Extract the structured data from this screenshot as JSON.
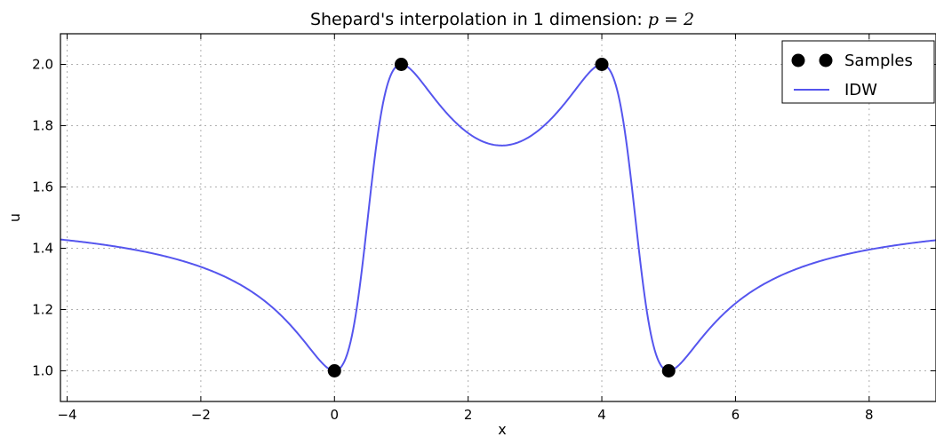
{
  "chart_data": {
    "type": "line",
    "title": "Shepard's interpolation in 1 dimension: ",
    "title_math": "p = 2",
    "xlabel": "x",
    "ylabel": "u",
    "xlim": [
      -4.1,
      9.0
    ],
    "ylim": [
      0.9,
      2.1
    ],
    "xticks": [
      -4,
      -2,
      0,
      2,
      4,
      6,
      8
    ],
    "xtick_labels": [
      "−4",
      "−2",
      "0",
      "2",
      "4",
      "6",
      "8"
    ],
    "yticks": [
      1.0,
      1.2,
      1.4,
      1.6,
      1.8,
      2.0
    ],
    "ytick_labels": [
      "1.0",
      "1.2",
      "1.4",
      "1.6",
      "1.8",
      "2.0"
    ],
    "grid": true,
    "legend_position": "top-right",
    "power": 2,
    "series": [
      {
        "name": "Samples",
        "kind": "scatter",
        "color": "#000000",
        "x": [
          0,
          1,
          4,
          5
        ],
        "y": [
          1.0,
          2.0,
          2.0,
          1.0
        ]
      },
      {
        "name": "IDW",
        "kind": "line",
        "color": "#5555ee",
        "x_range": [
          -4.1,
          9.0
        ]
      }
    ]
  }
}
